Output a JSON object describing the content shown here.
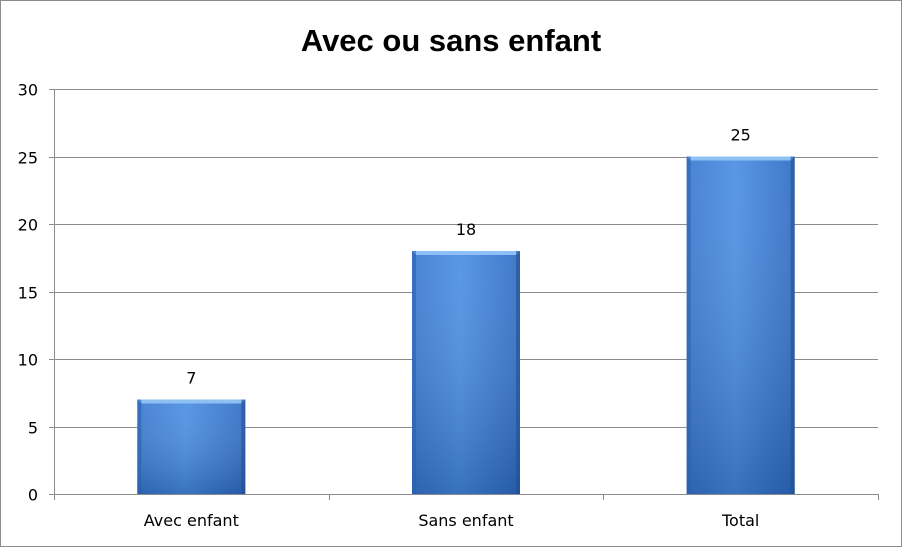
{
  "chart_data": {
    "type": "bar",
    "title": "Avec ou sans enfant",
    "categories": [
      "Avec enfant",
      "Sans enfant",
      "Total"
    ],
    "values": [
      7,
      18,
      25
    ],
    "data_labels": [
      "7",
      "18",
      "25"
    ],
    "ylim": [
      0,
      30
    ],
    "yticks": [
      0,
      5,
      10,
      15,
      20,
      25,
      30
    ],
    "ytick_labels": [
      "0",
      "5",
      "10",
      "15",
      "20",
      "25",
      "30"
    ],
    "grid": true,
    "legend": false,
    "xlabel": "",
    "ylabel": "",
    "colors": {
      "bar_top": "#5a9ae6",
      "bar_mid": "#3f80d8",
      "bar_bottom": "#2a5a9e",
      "grid": "#8c8c8c",
      "axis": "#8c8c8c"
    }
  }
}
